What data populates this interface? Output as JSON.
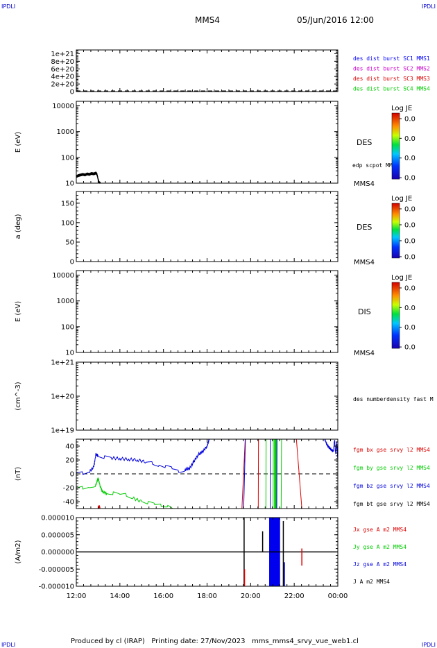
{
  "header": {
    "corner_left": "IPDLI",
    "corner_right": "IPDLI",
    "spacecraft": "MMS4",
    "date_time": "05/Jun/2016 12:00"
  },
  "footer": {
    "text": "Produced by cl (IRAP)   Printing date: 27/Nov/2023   mms_mms4_srvy_vue_web1.cl",
    "corner_left": "IPDLI",
    "corner_right": "IPDLI"
  },
  "colors": {
    "mms1": "#0000ff",
    "mms2": "#cc00cc",
    "mms3": "#dd0000",
    "mms4": "#00cc00",
    "bx": "#dd0000",
    "by": "#00cc00",
    "bz": "#0000dd",
    "bt": "#000000"
  },
  "chart_data": [
    {
      "id": "p1",
      "type": "line",
      "title": "",
      "ylabel": "",
      "ylim": [
        0,
        1.1e+21
      ],
      "yticks": [
        "1e+21",
        "8e+20",
        "6e+20",
        "4e+20",
        "2e+20",
        "0"
      ],
      "reference_line": 0,
      "legend": [
        {
          "name": "des dist burst SC1 MMS1",
          "color": "#0000ff"
        },
        {
          "name": "des dist burst SC2 MMS2",
          "color": "#cc00cc"
        },
        {
          "name": "des dist burst SC3 MMS3",
          "color": "#dd0000"
        },
        {
          "name": "des dist burst SC4 MMS4",
          "color": "#00cc00"
        }
      ],
      "series": []
    },
    {
      "id": "p2",
      "type": "heatmap",
      "ylabel": "E (eV)",
      "scale": "log",
      "ylim": [
        10,
        15000
      ],
      "yticks": [
        "10000",
        "1000",
        "100",
        "10"
      ],
      "instrument": "DES",
      "spacecraft_label": "MMS4",
      "overlay_label": "edp scpot MMS4",
      "colorbar": {
        "title": "Log JE",
        "ticks": [
          "0.0",
          "0.0",
          "0.0",
          "0.0"
        ]
      },
      "overlay_series": {
        "name": "edp scpot MMS4",
        "x": [
          12.0,
          12.1,
          12.2,
          12.3,
          12.4,
          12.5,
          12.6,
          12.7,
          12.8,
          12.9,
          12.95,
          13.0,
          13.05,
          13.1
        ],
        "y": [
          18,
          20,
          21,
          22,
          21,
          23,
          22,
          24,
          23,
          25,
          22,
          14,
          10.5,
          10
        ]
      }
    },
    {
      "id": "p3",
      "type": "heatmap",
      "ylabel": "a (deg)",
      "ylim": [
        0,
        180
      ],
      "yticks": [
        "150",
        "100",
        "50",
        "0"
      ],
      "instrument": "DES",
      "spacecraft_label": "MMS4",
      "colorbar": {
        "title": "Log JE",
        "ticks": [
          "0.0",
          "0.0",
          "0.0",
          "0.0"
        ]
      }
    },
    {
      "id": "p4",
      "type": "heatmap",
      "ylabel": "E (eV)",
      "scale": "log",
      "ylim": [
        10,
        15000
      ],
      "yticks": [
        "10000",
        "1000",
        "100",
        "10"
      ],
      "instrument": "DIS",
      "spacecraft_label": "MMS4",
      "colorbar": {
        "title": "Log JE",
        "ticks": [
          "0.0",
          "0.0",
          "0.0",
          "0.0"
        ]
      }
    },
    {
      "id": "p5",
      "type": "line",
      "ylabel": "(cm^-3)",
      "scale": "log",
      "ylim": [
        1e+19,
        1e+21
      ],
      "yticks": [
        "1e+21",
        "1e+20",
        "1e+19"
      ],
      "legend": [
        {
          "name": "des numberdensity fast M",
          "color": "#000000"
        }
      ],
      "series": []
    },
    {
      "id": "p6",
      "type": "line",
      "ylabel": "(nT)",
      "ylim": [
        -50,
        50
      ],
      "yticks": [
        "40",
        "20",
        "0",
        "-20",
        "-40"
      ],
      "reference_line": 0,
      "legend": [
        {
          "name": "fgm bx gse srvy l2 MMS4",
          "color": "#dd0000"
        },
        {
          "name": "fgm by gse srvy l2 MMS4",
          "color": "#00cc00"
        },
        {
          "name": "fgm bz gse srvy l2 MMS4",
          "color": "#0000dd"
        },
        {
          "name": "fgm bt gse srvy l2 MMS4",
          "color": "#000000"
        }
      ],
      "series": [
        {
          "name": "fgm bz gse srvy l2 MMS4",
          "color": "#0000dd",
          "x": [
            12.0,
            12.3,
            12.6,
            12.8,
            12.9,
            13.0,
            13.3,
            13.6,
            14.0,
            14.4,
            14.8,
            15.2,
            15.5,
            15.8,
            16.1,
            16.4,
            16.7,
            17.0,
            17.2,
            17.4,
            17.6,
            17.8,
            18.0,
            18.1
          ],
          "y": [
            0,
            1,
            3,
            10,
            28,
            26,
            24,
            23,
            22,
            21,
            20,
            17,
            16,
            12,
            10,
            8,
            4,
            6,
            8,
            18,
            28,
            32,
            40,
            50
          ]
        },
        {
          "name": "fgm by gse srvy l2 MMS4",
          "color": "#00cc00",
          "x": [
            12.0,
            12.3,
            12.6,
            12.9,
            13.0,
            13.1,
            13.2,
            13.4,
            13.7,
            14.0,
            14.3,
            14.6,
            15.0,
            15.3,
            15.6,
            15.9,
            16.2,
            16.5
          ],
          "y": [
            -22,
            -20,
            -19,
            -16,
            -6,
            -18,
            -26,
            -28,
            -28,
            -30,
            -30,
            -35,
            -40,
            -42,
            -44,
            -45,
            -46,
            -50
          ]
        },
        {
          "name": "fgm bx gse srvy l2 MMS4",
          "color": "#dd0000",
          "x": [
            13.0,
            13.05,
            13.1
          ],
          "y": [
            -50,
            -47,
            -50
          ]
        },
        {
          "name": "fgm bz gse srvy l2 MMS4 (late)",
          "color": "#0000dd",
          "x": [
            23.4,
            23.5,
            23.6,
            23.7,
            23.8,
            23.85,
            23.9,
            23.95,
            24.0
          ],
          "y": [
            50,
            42,
            38,
            35,
            32,
            50,
            28,
            45,
            20
          ]
        }
      ],
      "spikes": [
        {
          "x": [
            19.6,
            19.75
          ],
          "y": [
            -50,
            50
          ],
          "color": "#dd0000"
        },
        {
          "x": [
            19.68,
            19.76
          ],
          "y": [
            -50,
            50
          ],
          "color": "#0000dd"
        },
        {
          "x": [
            20.35,
            20.36
          ],
          "y": [
            -50,
            50
          ],
          "color": "#dd0000"
        },
        {
          "x": [
            20.7,
            20.71
          ],
          "y": [
            -50,
            50
          ],
          "color": "#00cc00"
        },
        {
          "x": [
            20.9,
            20.91
          ],
          "y": [
            -50,
            50
          ],
          "color": "#0000dd"
        },
        {
          "x": [
            21.03,
            21.04
          ],
          "y": [
            -50,
            50
          ],
          "color": "#00cc00"
        },
        {
          "x": [
            21.2,
            21.21
          ],
          "y": [
            -50,
            50
          ],
          "color": "#0000dd"
        },
        {
          "x": [
            21.4,
            21.42
          ],
          "y": [
            -50,
            50
          ],
          "color": "#00cc00"
        },
        {
          "x": [
            22.1,
            22.35
          ],
          "y": [
            50,
            -50
          ],
          "color": "#dd0000"
        }
      ],
      "bands": [
        {
          "x": [
            21.08,
            21.2
          ],
          "color": "#00cc00"
        }
      ]
    },
    {
      "id": "p7",
      "type": "line",
      "ylabel": "(A/m2)",
      "ylim": [
        -1e-05,
        1e-05
      ],
      "yticks": [
        "0.000010",
        "0.000005",
        "0.000000",
        "-0.000005",
        "-0.000010"
      ],
      "legend": [
        {
          "name": "Jx gse A m2 MMS4",
          "color": "#dd0000"
        },
        {
          "name": "Jy gse A m2 MMS4",
          "color": "#00cc00"
        },
        {
          "name": "Jz gse A m2 MMS4",
          "color": "#0000dd"
        },
        {
          "name": "J A m2 MMS4",
          "color": "#000000"
        }
      ],
      "baseline": 0,
      "spikes": [
        {
          "x": 19.7,
          "y": [
            -1e-05,
            1e-05
          ],
          "color": "#000000"
        },
        {
          "x": 19.72,
          "y": [
            -1e-05,
            -5e-06
          ],
          "color": "#dd0000"
        },
        {
          "x": 20.55,
          "y": [
            0.0,
            6e-06
          ],
          "color": "#000000"
        },
        {
          "x": 21.5,
          "y": [
            -1e-05,
            9e-06
          ],
          "color": "#000000"
        },
        {
          "x": 21.55,
          "y": [
            -1e-05,
            -3e-06
          ],
          "color": "#0000dd"
        },
        {
          "x": 22.35,
          "y": [
            -4e-06,
            1e-06
          ],
          "color": "#dd0000"
        }
      ],
      "bands": [
        {
          "x": [
            20.85,
            21.35
          ],
          "y": [
            -1e-05,
            1e-05
          ],
          "color": "#0000ee"
        }
      ]
    }
  ],
  "xaxis": {
    "xlim": [
      12,
      24
    ],
    "ticks": [
      12,
      14,
      16,
      18,
      20,
      22,
      24
    ],
    "tick_labels": [
      "12:00",
      "14:00",
      "16:00",
      "18:00",
      "20:00",
      "22:00",
      "00:00"
    ]
  }
}
